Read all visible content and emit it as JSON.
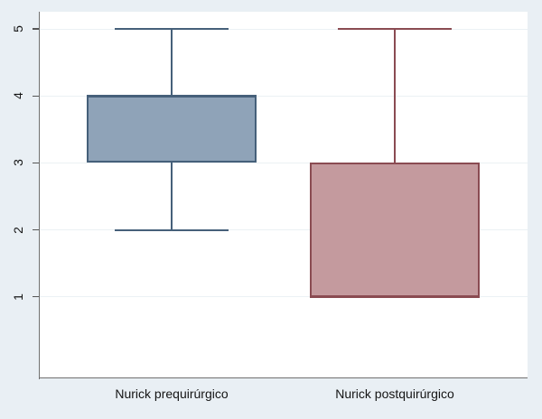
{
  "chart_data": {
    "type": "box",
    "orientation": "vertical",
    "title": "",
    "xlabel": "",
    "ylabel": "",
    "categories": [
      "Nurick prequirúrgico",
      "Nurick postquirúrgico"
    ],
    "boxes": [
      {
        "label": "Nurick prequirúrgico",
        "q1": 3,
        "q3": 4,
        "median": 4,
        "whisker_low": 2,
        "whisker_high": 5,
        "fill": "#8fa3b8",
        "border": "#46607a"
      },
      {
        "label": "Nurick postquirúrgico",
        "q1": 1,
        "q3": 3,
        "median": 1,
        "whisker_low": 1,
        "whisker_high": 5,
        "fill": "#c49a9e",
        "border": "#8a4b52"
      }
    ],
    "yticks": [
      1,
      2,
      3,
      4,
      5
    ],
    "ylim": [
      -0.2,
      5.3
    ],
    "grid": true,
    "legend": false,
    "colors": {
      "figure_background": "#e9eff4",
      "plot_background": "#ffffff",
      "gridline": "#ebf1f4",
      "axis": "#707070",
      "tick": "#555555",
      "text": "#141414"
    }
  }
}
